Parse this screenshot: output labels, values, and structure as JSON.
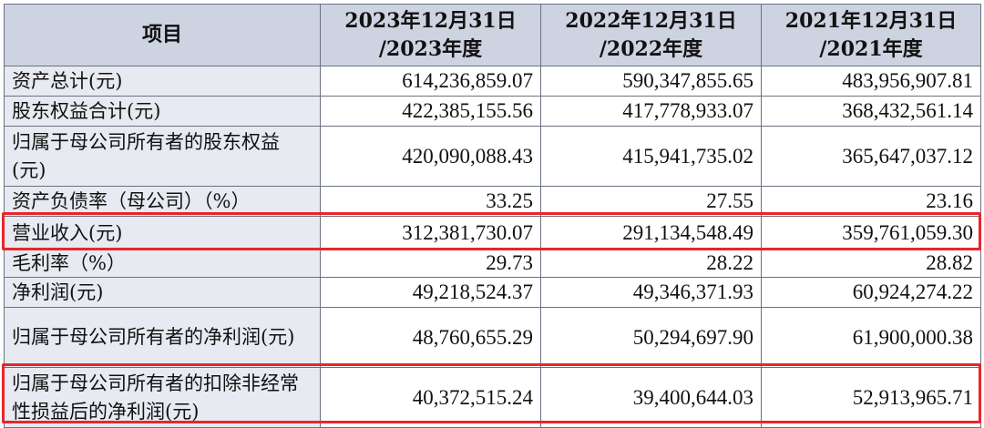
{
  "table": {
    "headers": {
      "item": "项目",
      "col1_line1": "2023年12月31日",
      "col1_line2": "/2023年度",
      "col2_line1": "2022年12月31日",
      "col2_line2": "/2022年度",
      "col3_line1": "2021年12月31日",
      "col3_line2": "/2021年度"
    },
    "rows": [
      {
        "label": "资产总计(元)",
        "v2023": "614,236,859.07",
        "v2022": "590,347,855.65",
        "v2021": "483,956,907.81"
      },
      {
        "label": "股东权益合计(元)",
        "v2023": "422,385,155.56",
        "v2022": "417,778,933.07",
        "v2021": "368,432,561.14"
      },
      {
        "label": "归属于母公司所有者的股东权益(元)",
        "v2023": "420,090,088.43",
        "v2022": "415,941,735.02",
        "v2021": "365,647,037.12"
      },
      {
        "label": "资产负债率（母公司）（%）",
        "v2023": "33.25",
        "v2022": "27.55",
        "v2021": "23.16"
      },
      {
        "label": "营业收入(元)",
        "v2023": "312,381,730.07",
        "v2022": "291,134,548.49",
        "v2021": "359,761,059.30"
      },
      {
        "label": "毛利率（%）",
        "v2023": "29.73",
        "v2022": "28.22",
        "v2021": "28.82"
      },
      {
        "label": "净利润(元)",
        "v2023": "49,218,524.37",
        "v2022": "49,346,371.93",
        "v2021": "60,924,274.22"
      },
      {
        "label": "归属于母公司所有者的净利润(元)",
        "v2023": "48,760,655.29",
        "v2022": "50,294,697.90",
        "v2021": "61,900,000.38"
      },
      {
        "label": "归属于母公司所有者的扣除非经常性损益后的净利润(元)",
        "v2023": "40,372,515.24",
        "v2022": "39,400,644.03",
        "v2021": "52,913,965.71"
      }
    ]
  },
  "highlight_color": "#e8262a",
  "header_background": "#cdd3e1",
  "label_background": "#e8eaf1"
}
